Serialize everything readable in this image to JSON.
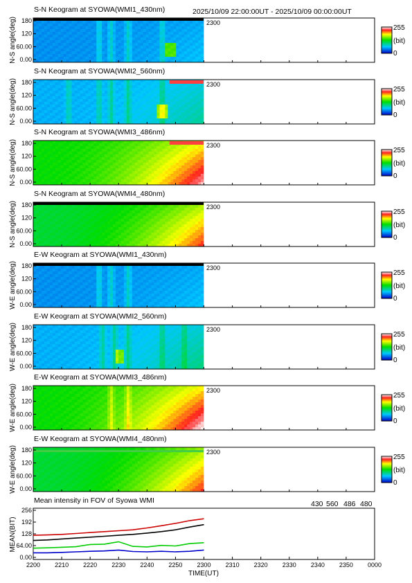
{
  "header_time_range": "2025/10/09 22:00:00UT - 2025/10/09 00:00:00UT",
  "colors": {
    "s430": "#0000cc",
    "s560": "#00cc00",
    "s486": "#cc0000",
    "s480": "#000000"
  },
  "keograms": [
    {
      "title": "S-N Keogram at SYOWA(WMI1_430nm)",
      "ylabel": "N-S angle(deg)",
      "base": 0.18,
      "dawn": 0.05,
      "top_band": "dark",
      "arcs": [
        0.38,
        0.45,
        0.55,
        0.75
      ],
      "spot": 0.8
    },
    {
      "title": "S-N Keogram at SYOWA(WMI2_560nm)",
      "ylabel": "N-S angle(deg)",
      "base": 0.22,
      "dawn": 0.1,
      "top_band": "red",
      "arcs": [
        0.2,
        0.38,
        0.45,
        0.55,
        0.75
      ],
      "spot": 0.75
    },
    {
      "title": "S-N Keogram at SYOWA(WMI3_486nm)",
      "ylabel": "N-S angle(deg)",
      "base": 0.5,
      "dawn": 0.35,
      "top_band": "red",
      "arcs": [],
      "spot": 0
    },
    {
      "title": "S-N Keogram at SYOWA(WMI4_480nm)",
      "ylabel": "N-S angle(deg)",
      "base": 0.45,
      "dawn": 0.32,
      "top_band": "dark",
      "arcs": [],
      "spot": 0
    },
    {
      "title": "E-W Keogram at SYOWA(WMI1_430nm)",
      "ylabel": "W-E angle(deg)",
      "base": 0.18,
      "dawn": 0.05,
      "top_band": "dark",
      "arcs": [
        0.38,
        0.45,
        0.55
      ],
      "spot": 0
    },
    {
      "title": "E-W Keogram at SYOWA(WMI2_560nm)",
      "ylabel": "W-E angle(deg)",
      "base": 0.22,
      "dawn": 0.12,
      "top_band": "none",
      "arcs": [
        0.4,
        0.47,
        0.55,
        0.75,
        0.88
      ],
      "spot": 0.5
    },
    {
      "title": "E-W Keogram at SYOWA(WMI3_486nm)",
      "ylabel": "W-E angle(deg)",
      "base": 0.5,
      "dawn": 0.38,
      "top_band": "none",
      "arcs": [
        0.45,
        0.55
      ],
      "spot": 0
    },
    {
      "title": "E-W Keogram at SYOWA(WMI4_480nm)",
      "ylabel": "W-E angle(deg)",
      "base": 0.45,
      "dawn": 0.32,
      "top_band": "green",
      "arcs": [],
      "spot": 0
    }
  ],
  "keogram_axis": {
    "yticks": [
      "180",
      "120",
      "60.00",
      "0.00"
    ],
    "cb_max": "255",
    "cb_unit": "(bit)",
    "cb_min": "0",
    "data_end_label": "2300"
  },
  "chart_data": {
    "type": "line",
    "title": "Mean intensity in FOV of Syowa WMI",
    "xlabel": "TIME(UT)",
    "ylabel": "MEAN(BIT)",
    "xticks": [
      "2200",
      "2210",
      "2220",
      "2230",
      "2240",
      "2250",
      "2300",
      "2310",
      "2320",
      "2330",
      "2340",
      "2350",
      "0000"
    ],
    "yticks": [
      "256",
      "192",
      "128",
      "64.00",
      "0.00"
    ],
    "ylim": [
      0,
      256
    ],
    "x_minutes": [
      0,
      5,
      10,
      15,
      20,
      25,
      30,
      35,
      40,
      45,
      50,
      55,
      60
    ],
    "series": [
      {
        "name": "430",
        "color": "#0000cc",
        "values": [
          25,
          25,
          27,
          30,
          33,
          35,
          40,
          32,
          30,
          33,
          30,
          33,
          40
        ]
      },
      {
        "name": "560",
        "color": "#00cc00",
        "values": [
          50,
          52,
          55,
          58,
          70,
          72,
          85,
          60,
          57,
          65,
          62,
          75,
          80
        ]
      },
      {
        "name": "486",
        "color": "#cc0000",
        "values": [
          120,
          122,
          125,
          130,
          135,
          140,
          145,
          150,
          160,
          172,
          185,
          200,
          210
        ]
      },
      {
        "name": "480",
        "color": "#000000",
        "values": [
          92,
          95,
          100,
          105,
          110,
          115,
          120,
          125,
          132,
          140,
          150,
          165,
          178
        ]
      }
    ]
  }
}
